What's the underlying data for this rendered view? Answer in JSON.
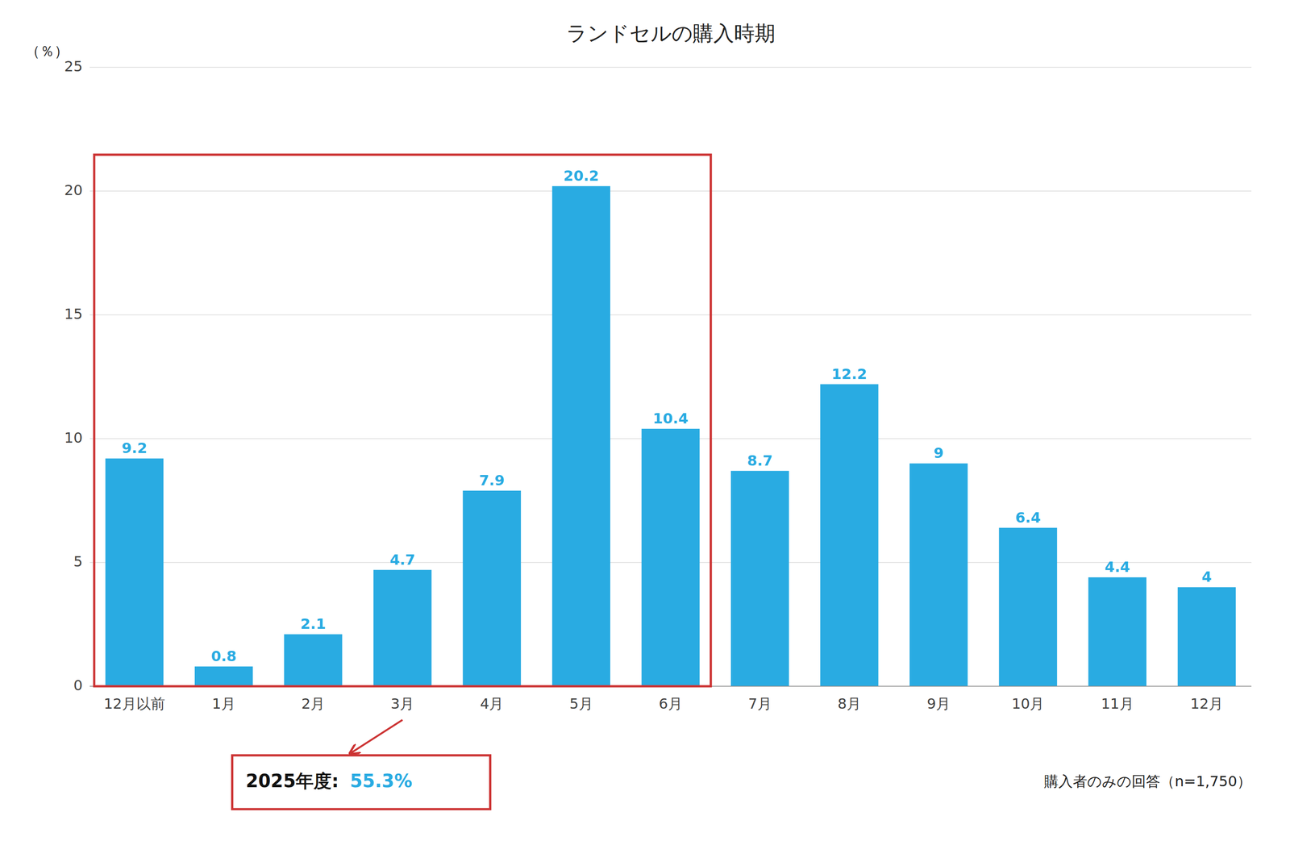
{
  "chart_data": {
    "type": "bar",
    "title": "ランドセルの購入時期",
    "ylabel": "（％）",
    "categories": [
      "12月以前",
      "1月",
      "2月",
      "3月",
      "4月",
      "5月",
      "6月",
      "7月",
      "8月",
      "9月",
      "10月",
      "11月",
      "12月"
    ],
    "values": [
      9.2,
      0.8,
      2.1,
      4.7,
      7.9,
      20.2,
      10.4,
      8.7,
      12.2,
      9.0,
      6.4,
      4.4,
      4.0
    ],
    "color": "#29ABE2",
    "ylim": [
      0,
      25
    ],
    "yticks": [
      0,
      5,
      10,
      15,
      20,
      25
    ],
    "grid": true,
    "data_labels": true,
    "annotations": [
      {
        "text": "2025年度:",
        "value": 55.3,
        "label": "55.3%",
        "label_color": "#29ABE2",
        "color": "#CC3333",
        "from": "12月以前",
        "to": "6月"
      }
    ],
    "note": "購入者のみの回答（n=1,750）"
  }
}
